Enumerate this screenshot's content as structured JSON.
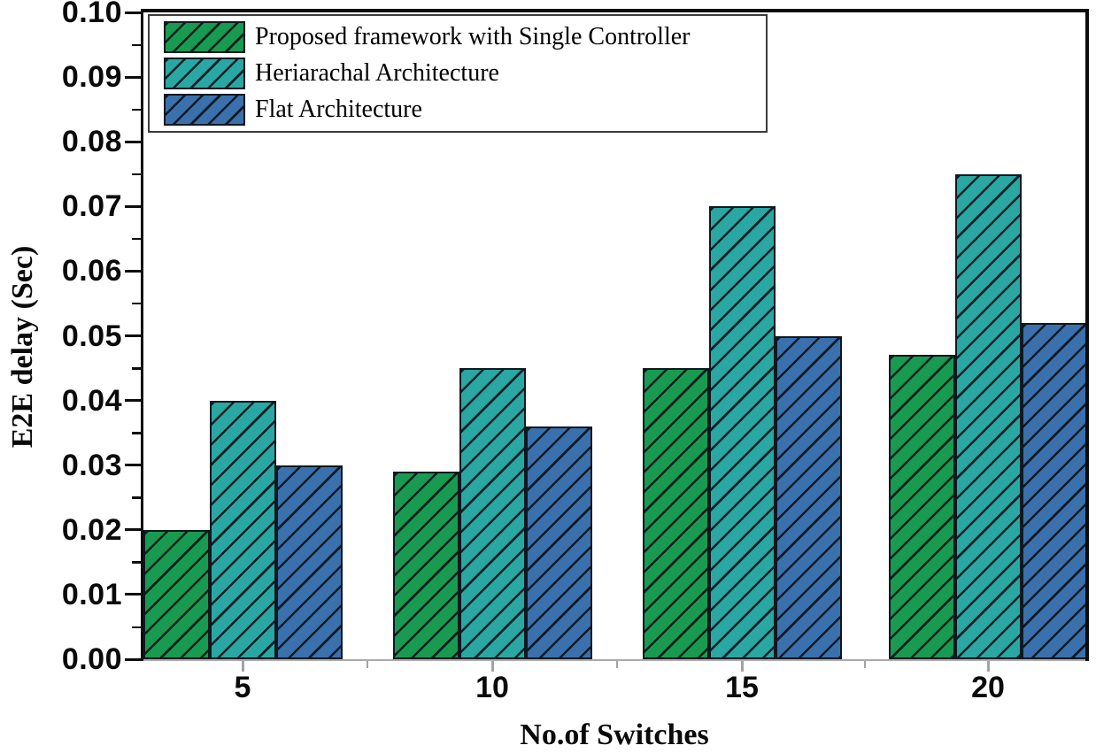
{
  "figure": {
    "background": "#ffffff"
  },
  "chart_data": {
    "type": "bar",
    "title": "",
    "xlabel": "No.of Switches",
    "ylabel": "E2E delay (Sec)",
    "categories": [
      "5",
      "10",
      "15",
      "20"
    ],
    "series": [
      {
        "name": "Proposed framework with Single Controller",
        "color": "#189b51",
        "values": [
          0.02,
          0.029,
          0.045,
          0.047
        ]
      },
      {
        "name": "Heriarachal Architecture",
        "color": "#2aa7a2",
        "values": [
          0.04,
          0.045,
          0.07,
          0.075
        ]
      },
      {
        "name": "Flat Architecture",
        "color": "#3a71ad",
        "values": [
          0.03,
          0.036,
          0.05,
          0.052
        ]
      }
    ],
    "ylim": [
      0.0,
      0.1
    ],
    "y_major_step": 0.01,
    "y_minor_step": 0.005,
    "y_tick_labels": [
      "0.00",
      "0.01",
      "0.02",
      "0.03",
      "0.04",
      "0.05",
      "0.06",
      "0.07",
      "0.08",
      "0.09",
      "0.10"
    ],
    "x_tick_labels": [
      "5",
      "10",
      "15",
      "20"
    ],
    "legend_position": "top-left",
    "grid": false,
    "hatch_pattern": "/",
    "bar_edge_color": "#10181f",
    "x_axis_color": "#a3a3a3",
    "y_axis_color": "#0d0d0d"
  }
}
